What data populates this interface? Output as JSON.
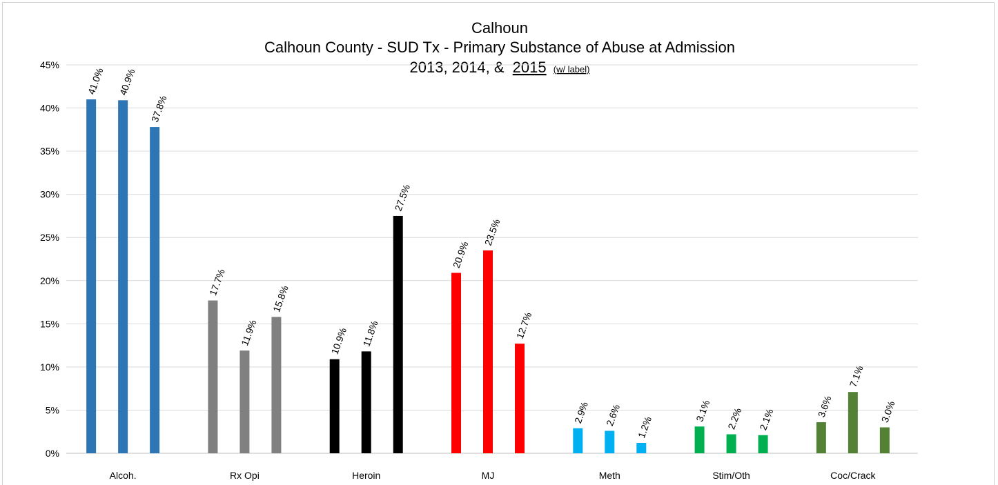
{
  "chart_data": {
    "type": "bar",
    "title": "Calhoun",
    "subtitle": "Calhoun County - SUD Tx - Primary Substance of Abuse at Admission",
    "subtitle2": "2013, 2014, &",
    "subtitle2_year": "2015",
    "subtitle2_note": "(w/ label)",
    "xlabel": "",
    "ylabel": "",
    "ylim": [
      0,
      45
    ],
    "ytick_step": 5,
    "y_format": "percent",
    "grid": true,
    "categories": [
      "Alcoh.",
      "Rx Opi",
      "Heroin",
      "MJ",
      "Meth",
      "Stim/Oth",
      "Coc/Crack"
    ],
    "category_colors": [
      "#2e75b6",
      "#808080",
      "#000000",
      "#ff0000",
      "#00b0f0",
      "#00b050",
      "#548235"
    ],
    "series": [
      {
        "values": [
          41.0,
          17.7,
          10.9,
          20.9,
          2.9,
          3.1,
          3.6
        ],
        "labels": [
          "41.0%",
          "17.7%",
          "10.9%",
          "20.9%",
          "2.9%",
          "3.1%",
          "3.6%"
        ]
      },
      {
        "values": [
          40.9,
          11.9,
          11.8,
          23.5,
          2.6,
          2.2,
          7.1
        ],
        "labels": [
          "40.9%",
          "11.9%",
          "11.8%",
          "23.5%",
          "2.6%",
          "2.2%",
          "7.1%"
        ]
      },
      {
        "values": [
          37.8,
          15.8,
          27.5,
          12.7,
          1.2,
          2.1,
          3.0
        ],
        "labels": [
          "37.8%",
          "15.8%",
          "27.5%",
          "12.7%",
          "1.2%",
          "2.1%",
          "3.0%"
        ]
      }
    ]
  }
}
